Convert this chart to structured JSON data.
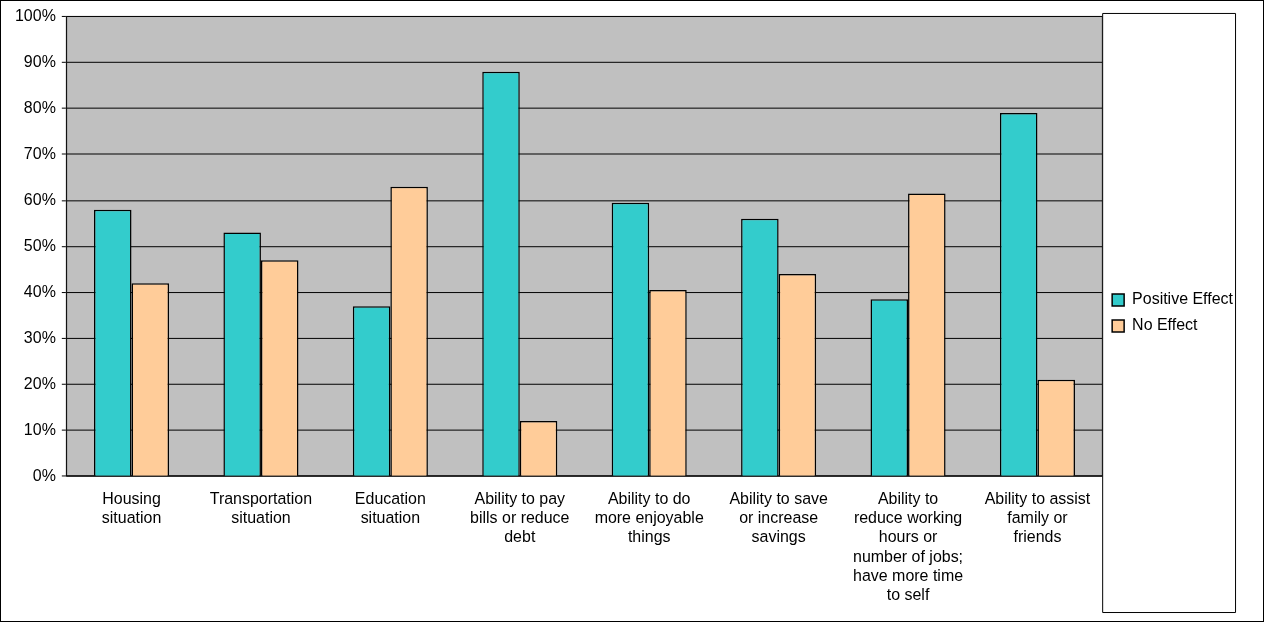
{
  "chart_data": {
    "type": "bar",
    "categories": [
      "Housing situation",
      "Transportation situation",
      "Education situation",
      "Ability to pay bills or reduce debt",
      "Ability to do more enjoyable things",
      "Ability to save or increase savings",
      "Ability to reduce working hours or number of jobs; have more time to self",
      "Ability to assist family or friends"
    ],
    "series": [
      {
        "name": "Positive Effect",
        "color": "#33cccc",
        "values": [
          58,
          53,
          37,
          88,
          59.5,
          56,
          38.5,
          79
        ]
      },
      {
        "name": "No Effect",
        "color": "#ffcc99",
        "values": [
          42,
          47,
          63,
          12,
          40.5,
          44,
          61.5,
          21
        ]
      }
    ],
    "ylim": [
      0,
      100
    ],
    "yticks": [
      {
        "value": 0,
        "label": "0%"
      },
      {
        "value": 10,
        "label": "10%"
      },
      {
        "value": 20,
        "label": "20%"
      },
      {
        "value": 30,
        "label": "30%"
      },
      {
        "value": 40,
        "label": "40%"
      },
      {
        "value": 50,
        "label": "50%"
      },
      {
        "value": 60,
        "label": "60%"
      },
      {
        "value": 70,
        "label": "70%"
      },
      {
        "value": 80,
        "label": "80%"
      },
      {
        "value": 90,
        "label": "90%"
      },
      {
        "value": 100,
        "label": "100%"
      }
    ],
    "grid": "y",
    "legend": "right"
  }
}
